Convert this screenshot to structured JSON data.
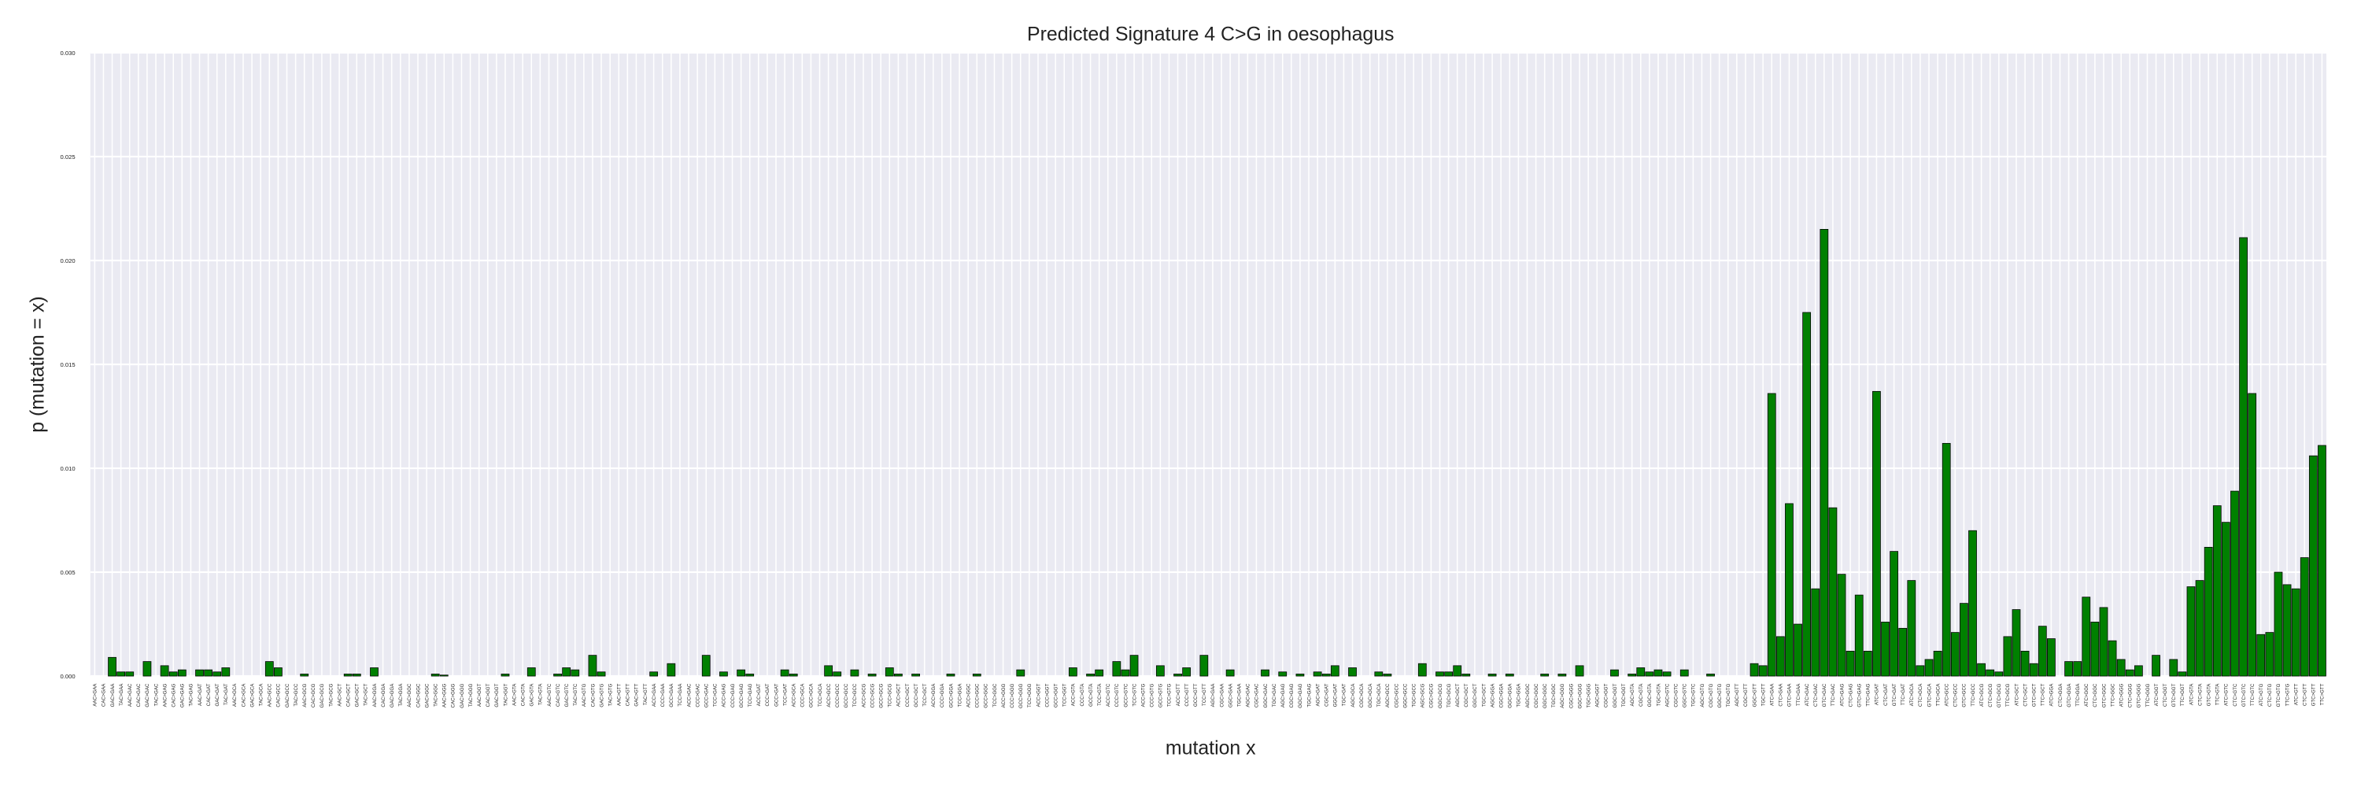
{
  "chart_data": {
    "type": "bar",
    "title": "Predicted Signature 4 C>G in oesophagus",
    "x_label": "mutation x",
    "y_label": "p (mutation = x)",
    "color": "#008000",
    "edge_color": "#000000",
    "grid": true,
    "ylim": [
      0,
      0.03
    ],
    "yticks": [
      {
        "value": 0,
        "label": "0.000"
      },
      {
        "value": 0.005,
        "label": "0.005"
      },
      {
        "value": 0.01,
        "label": "0.010"
      },
      {
        "value": 0.015,
        "label": "0.015"
      },
      {
        "value": 0.02,
        "label": "0.020"
      },
      {
        "value": 0.025,
        "label": "0.025"
      },
      {
        "value": 0.03,
        "label": "0.030"
      }
    ],
    "categories": [
      "AAC>GAA",
      "CAC>GAA",
      "GAC>GAA",
      "TAC>GAA",
      "AAC>GAC",
      "CAC>GAC",
      "GAC>GAC",
      "TAC>GAC",
      "AAC>GAG",
      "CAC>GAG",
      "GAC>GAG",
      "TAC>GAG",
      "AAC>GAT",
      "CAC>GAT",
      "GAC>GAT",
      "TAC>GAT",
      "AAC>GCA",
      "CAC>GCA",
      "GAC>GCA",
      "TAC>GCA",
      "AAC>GCC",
      "CAC>GCC",
      "GAC>GCC",
      "TAC>GCC",
      "AAC>GCG",
      "CAC>GCG",
      "GAC>GCG",
      "TAC>GCG",
      "AAC>GCT",
      "CAC>GCT",
      "GAC>GCT",
      "TAC>GCT",
      "AAC>GGA",
      "CAC>GGA",
      "GAC>GGA",
      "TAC>GGA",
      "AAC>GGC",
      "CAC>GGC",
      "GAC>GGC",
      "TAC>GGC",
      "AAC>GGG",
      "CAC>GGG",
      "GAC>GGG",
      "TAC>GGG",
      "AAC>GGT",
      "CAC>GGT",
      "GAC>GGT",
      "TAC>GGT",
      "AAC>GTA",
      "CAC>GTA",
      "GAC>GTA",
      "TAC>GTA",
      "AAC>GTC",
      "CAC>GTC",
      "GAC>GTC",
      "TAC>GTC",
      "AAC>GTG",
      "CAC>GTG",
      "GAC>GTG",
      "TAC>GTG",
      "AAC>GTT",
      "CAC>GTT",
      "GAC>GTT",
      "TAC>GTT",
      "ACC>GAA",
      "CCC>GAA",
      "GCC>GAA",
      "TCC>GAA",
      "ACC>GAC",
      "CCC>GAC",
      "GCC>GAC",
      "TCC>GAC",
      "ACC>GAG",
      "CCC>GAG",
      "GCC>GAG",
      "TCC>GAG",
      "ACC>GAT",
      "CCC>GAT",
      "GCC>GAT",
      "TCC>GAT",
      "ACC>GCA",
      "CCC>GCA",
      "GCC>GCA",
      "TCC>GCA",
      "ACC>GCC",
      "CCC>GCC",
      "GCC>GCC",
      "TCC>GCC",
      "ACC>GCG",
      "CCC>GCG",
      "GCC>GCG",
      "TCC>GCG",
      "ACC>GCT",
      "CCC>GCT",
      "GCC>GCT",
      "TCC>GCT",
      "ACC>GGA",
      "CCC>GGA",
      "GCC>GGA",
      "TCC>GGA",
      "ACC>GGC",
      "CCC>GGC",
      "GCC>GGC",
      "TCC>GGC",
      "ACC>GGG",
      "CCC>GGG",
      "GCC>GGG",
      "TCC>GGG",
      "ACC>GGT",
      "CCC>GGT",
      "GCC>GGT",
      "TCC>GGT",
      "ACC>GTA",
      "CCC>GTA",
      "GCC>GTA",
      "TCC>GTA",
      "ACC>GTC",
      "CCC>GTC",
      "GCC>GTC",
      "TCC>GTC",
      "ACC>GTG",
      "CCC>GTG",
      "GCC>GTG",
      "TCC>GTG",
      "ACC>GTT",
      "CCC>GTT",
      "GCC>GTT",
      "TCC>GTT",
      "AGC>GAA",
      "CGC>GAA",
      "GGC>GAA",
      "TGC>GAA",
      "AGC>GAC",
      "CGC>GAC",
      "GGC>GAC",
      "TGC>GAC",
      "AGC>GAG",
      "CGC>GAG",
      "GGC>GAG",
      "TGC>GAG",
      "AGC>GAT",
      "CGC>GAT",
      "GGC>GAT",
      "TGC>GAT",
      "AGC>GCA",
      "CGC>GCA",
      "GGC>GCA",
      "TGC>GCA",
      "AGC>GCC",
      "CGC>GCC",
      "GGC>GCC",
      "TGC>GCC",
      "AGC>GCG",
      "CGC>GCG",
      "GGC>GCG",
      "TGC>GCG",
      "AGC>GCT",
      "CGC>GCT",
      "GGC>GCT",
      "TGC>GCT",
      "AGC>GGA",
      "CGC>GGA",
      "GGC>GGA",
      "TGC>GGA",
      "AGC>GGC",
      "CGC>GGC",
      "GGC>GGC",
      "TGC>GGC",
      "AGC>GGG",
      "CGC>GGG",
      "GGC>GGG",
      "TGC>GGG",
      "AGC>GGT",
      "CGC>GGT",
      "GGC>GGT",
      "TGC>GGT",
      "AGC>GTA",
      "CGC>GTA",
      "GGC>GTA",
      "TGC>GTA",
      "AGC>GTC",
      "CGC>GTC",
      "GGC>GTC",
      "TGC>GTC",
      "AGC>GTG",
      "CGC>GTG",
      "GGC>GTG",
      "TGC>GTG",
      "AGC>GTT",
      "CGC>GTT",
      "GGC>GTT",
      "TGC>GTT",
      "ATC>GAA",
      "CTC>GAA",
      "GTC>GAA",
      "TTC>GAA",
      "ATC>GAC",
      "CTC>GAC",
      "GTC>GAC",
      "TTC>GAC",
      "ATC>GAG",
      "CTC>GAG",
      "GTC>GAG",
      "TTC>GAG",
      "ATC>GAT",
      "CTC>GAT",
      "GTC>GAT",
      "TTC>GAT",
      "ATC>GCA",
      "CTC>GCA",
      "GTC>GCA",
      "TTC>GCA",
      "ATC>GCC",
      "CTC>GCC",
      "GTC>GCC",
      "TTC>GCC",
      "ATC>GCG",
      "CTC>GCG",
      "GTC>GCG",
      "TTC>GCG",
      "ATC>GCT",
      "CTC>GCT",
      "GTC>GCT",
      "TTC>GCT",
      "ATC>GGA",
      "CTC>GGA",
      "GTC>GGA",
      "TTC>GGA",
      "ATC>GGC",
      "CTC>GGC",
      "GTC>GGC",
      "TTC>GGC",
      "ATC>GGG",
      "CTC>GGG",
      "GTC>GGG",
      "TTC>GGG",
      "ATC>GGT",
      "CTC>GGT",
      "GTC>GGT",
      "TTC>GGT",
      "ATC>GTA",
      "CTC>GTA",
      "GTC>GTA",
      "TTC>GTA",
      "ATC>GTC",
      "CTC>GTC",
      "GTC>GTC",
      "TTC>GTC",
      "ATC>GTG",
      "CTC>GTG",
      "GTC>GTG",
      "TTC>GTG",
      "ATC>GTT",
      "CTC>GTT",
      "GTC>GTT",
      "TTC>GTT"
    ],
    "values": [
      0,
      0,
      0.0009,
      0.0002,
      0.0002,
      0,
      0.0007,
      0,
      0.0005,
      0.0002,
      0.0003,
      0,
      0.0003,
      0.0003,
      0.0002,
      0.0004,
      0,
      0,
      0,
      0,
      0.0007,
      0.0004,
      0,
      0,
      0.0001,
      0,
      0,
      0,
      0,
      0.0001,
      0.0001,
      0,
      0.0004,
      0,
      0,
      0,
      0,
      0,
      0,
      0.0001,
      5e-05,
      0,
      0,
      0,
      0,
      0,
      0,
      0.0001,
      0,
      0,
      0.0004,
      0,
      0,
      0.0001,
      0.0004,
      0.0003,
      0,
      0.001,
      0.0002,
      0,
      0,
      0,
      0,
      0,
      0.0002,
      0,
      0.0006,
      0,
      0,
      0,
      0.001,
      0,
      0.0002,
      0,
      0.0003,
      0.0001,
      0,
      0,
      0,
      0.0003,
      0.0001,
      0,
      0,
      0,
      0.0005,
      0.0002,
      0,
      0.0003,
      0,
      0.0001,
      0,
      0.0004,
      0.0001,
      0,
      0.0001,
      0,
      0,
      0,
      0.0001,
      0,
      0,
      0.0001,
      0,
      0,
      0,
      0,
      0.0003,
      0,
      0,
      0,
      0,
      0,
      0.0004,
      0,
      0.0001,
      0.0003,
      0,
      0.0007,
      0.0003,
      0.001,
      0,
      0,
      0.0005,
      0,
      0.0001,
      0.0004,
      0,
      0.001,
      0,
      0,
      0.0003,
      0,
      0,
      0,
      0.0003,
      0,
      0.0002,
      0,
      0.0001,
      0,
      0.0002,
      0.0001,
      0.0005,
      0,
      0.0004,
      0,
      0,
      0.0002,
      0.0001,
      0,
      0,
      0,
      0.0006,
      0,
      0.0002,
      0.0002,
      0.0005,
      0.0001,
      0,
      0,
      0.0001,
      0,
      0.0001,
      0,
      0,
      0,
      0.0001,
      0,
      0.0001,
      0,
      0.0005,
      0,
      0,
      0,
      0.0003,
      0,
      0.0001,
      0.0004,
      0.0002,
      0.0003,
      0.0002,
      0,
      0.0003,
      0,
      0,
      0.0001,
      0,
      0,
      0,
      0,
      0.0006,
      0.0005,
      0.0136,
      0.0019,
      0.0083,
      0.0025,
      0.0175,
      0.0042,
      0.0215,
      0.0081,
      0.0049,
      0.0012,
      0.0039,
      0.0012,
      0.0137,
      0.0026,
      0.006,
      0.0023,
      0.0046,
      0.0005,
      0.0008,
      0.0012,
      0.0112,
      0.0021,
      0.0035,
      0.007,
      0.0006,
      0.0003,
      0.0002,
      0.0019,
      0.0032,
      0.0012,
      0.0006,
      0.0024,
      0.0018,
      0,
      0.0007,
      0.0007,
      0.0038,
      0.0026,
      0.0033,
      0.0017,
      0.0008,
      0.0003,
      0.0005,
      0,
      0.001,
      0,
      0.0008,
      0.0002,
      0.0043,
      0.0046,
      0.0062,
      0.0082,
      0.0074,
      0.0089,
      0.0211,
      0.0136,
      0.002,
      0.0021,
      0.005,
      0.0044,
      0.0042,
      0.0057,
      0.0106,
      0.0111
    ]
  }
}
